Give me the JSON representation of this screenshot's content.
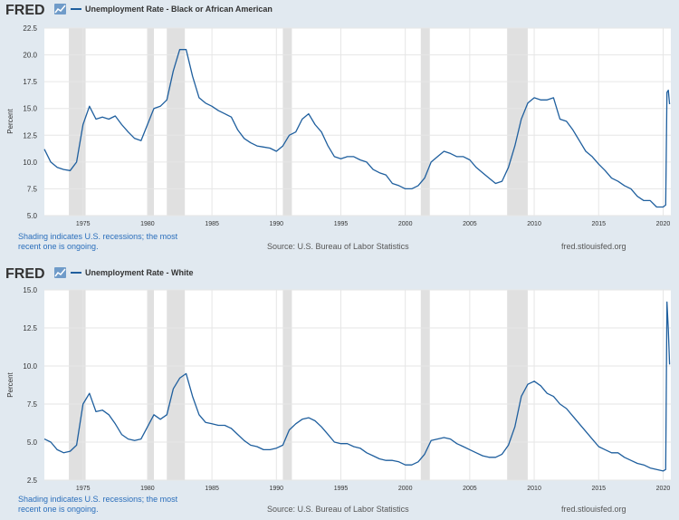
{
  "brand": {
    "logo_text": "FRED",
    "line_color": "#1f5f9e",
    "recession_color": "#e0e0e0",
    "plot_bg": "#ffffff",
    "grid_color": "#e6e6e6",
    "text_color": "#333333"
  },
  "footer": {
    "shading_note_line1": "Shading indicates U.S. recessions; the most",
    "shading_note_line2": "recent one is ongoing.",
    "source": "Source: U.S. Bureau of Labor Statistics",
    "url": "fred.stlouisfed.org"
  },
  "chart_data": [
    {
      "type": "line",
      "title": "Unemployment Rate - Black or African American",
      "ylabel": "Percent",
      "xlabel": "",
      "xlim": [
        1972.0,
        2020.6
      ],
      "ylim": [
        5.0,
        22.5
      ],
      "yticks": [
        "5.0",
        "7.5",
        "10.0",
        "12.5",
        "15.0",
        "17.5",
        "20.0",
        "22.5"
      ],
      "xticks": [
        "1975",
        "1980",
        "1985",
        "1990",
        "1995",
        "2000",
        "2005",
        "2010",
        "2015",
        "2020"
      ],
      "recessions": [
        [
          1973.9,
          1975.2
        ],
        [
          1980.0,
          1980.5
        ],
        [
          1981.5,
          1982.9
        ],
        [
          1990.5,
          1991.2
        ],
        [
          2001.2,
          2001.9
        ],
        [
          2007.9,
          2009.5
        ]
      ],
      "series": [
        {
          "name": "Unemployment Rate - Black or African American",
          "x": [
            1972.0,
            1972.5,
            1973.0,
            1973.5,
            1974.0,
            1974.5,
            1975.0,
            1975.5,
            1976.0,
            1976.5,
            1977.0,
            1977.5,
            1978.0,
            1978.5,
            1979.0,
            1979.5,
            1980.0,
            1980.5,
            1981.0,
            1981.5,
            1982.0,
            1982.5,
            1983.0,
            1983.5,
            1984.0,
            1984.5,
            1985.0,
            1985.5,
            1986.0,
            1986.5,
            1987.0,
            1987.5,
            1988.0,
            1988.5,
            1989.0,
            1989.5,
            1990.0,
            1990.5,
            1991.0,
            1991.5,
            1992.0,
            1992.5,
            1993.0,
            1993.5,
            1994.0,
            1994.5,
            1995.0,
            1995.5,
            1996.0,
            1996.5,
            1997.0,
            1997.5,
            1998.0,
            1998.5,
            1999.0,
            1999.5,
            2000.0,
            2000.5,
            2001.0,
            2001.5,
            2002.0,
            2002.5,
            2003.0,
            2003.5,
            2004.0,
            2004.5,
            2005.0,
            2005.5,
            2006.0,
            2006.5,
            2007.0,
            2007.5,
            2008.0,
            2008.5,
            2009.0,
            2009.5,
            2010.0,
            2010.5,
            2011.0,
            2011.5,
            2012.0,
            2012.5,
            2013.0,
            2013.5,
            2014.0,
            2014.5,
            2015.0,
            2015.5,
            2016.0,
            2016.5,
            2017.0,
            2017.5,
            2018.0,
            2018.5,
            2019.0,
            2019.5,
            2020.0,
            2020.2,
            2020.3,
            2020.4,
            2020.5
          ],
          "values": [
            11.2,
            10.0,
            9.5,
            9.3,
            9.2,
            10.0,
            13.5,
            15.2,
            14.0,
            14.2,
            14.0,
            14.3,
            13.5,
            12.8,
            12.2,
            12.0,
            13.5,
            15.0,
            15.2,
            15.8,
            18.5,
            20.5,
            20.5,
            18.0,
            16.0,
            15.5,
            15.2,
            14.8,
            14.5,
            14.2,
            13.0,
            12.2,
            11.8,
            11.5,
            11.4,
            11.3,
            11.0,
            11.5,
            12.5,
            12.8,
            14.0,
            14.5,
            13.5,
            12.8,
            11.5,
            10.5,
            10.3,
            10.5,
            10.5,
            10.2,
            10.0,
            9.3,
            9.0,
            8.8,
            8.0,
            7.8,
            7.5,
            7.5,
            7.8,
            8.5,
            10.0,
            10.5,
            11.0,
            10.8,
            10.5,
            10.5,
            10.2,
            9.5,
            9.0,
            8.5,
            8.0,
            8.2,
            9.5,
            11.5,
            14.0,
            15.5,
            16.0,
            15.8,
            15.8,
            16.0,
            14.0,
            13.8,
            13.0,
            12.0,
            11.0,
            10.5,
            9.8,
            9.2,
            8.5,
            8.2,
            7.8,
            7.5,
            6.8,
            6.4,
            6.4,
            5.8,
            5.8,
            6.0,
            16.5,
            16.7,
            15.4
          ]
        }
      ]
    },
    {
      "type": "line",
      "title": "Unemployment Rate - White",
      "ylabel": "Percent",
      "xlabel": "",
      "xlim": [
        1972.0,
        2020.6
      ],
      "ylim": [
        2.5,
        15.0
      ],
      "yticks": [
        "2.5",
        "5.0",
        "7.5",
        "10.0",
        "12.5",
        "15.0"
      ],
      "xticks": [
        "1975",
        "1980",
        "1985",
        "1990",
        "1995",
        "2000",
        "2005",
        "2010",
        "2015",
        "2020"
      ],
      "recessions": [
        [
          1973.9,
          1975.2
        ],
        [
          1980.0,
          1980.5
        ],
        [
          1981.5,
          1982.9
        ],
        [
          1990.5,
          1991.2
        ],
        [
          2001.2,
          2001.9
        ],
        [
          2007.9,
          2009.5
        ]
      ],
      "series": [
        {
          "name": "Unemployment Rate - White",
          "x": [
            1972.0,
            1972.5,
            1973.0,
            1973.5,
            1974.0,
            1974.5,
            1975.0,
            1975.5,
            1976.0,
            1976.5,
            1977.0,
            1977.5,
            1978.0,
            1978.5,
            1979.0,
            1979.5,
            1980.0,
            1980.5,
            1981.0,
            1981.5,
            1982.0,
            1982.5,
            1983.0,
            1983.5,
            1984.0,
            1984.5,
            1985.0,
            1985.5,
            1986.0,
            1986.5,
            1987.0,
            1987.5,
            1988.0,
            1988.5,
            1989.0,
            1989.5,
            1990.0,
            1990.5,
            1991.0,
            1991.5,
            1992.0,
            1992.5,
            1993.0,
            1993.5,
            1994.0,
            1994.5,
            1995.0,
            1995.5,
            1996.0,
            1996.5,
            1997.0,
            1997.5,
            1998.0,
            1998.5,
            1999.0,
            1999.5,
            2000.0,
            2000.5,
            2001.0,
            2001.5,
            2002.0,
            2002.5,
            2003.0,
            2003.5,
            2004.0,
            2004.5,
            2005.0,
            2005.5,
            2006.0,
            2006.5,
            2007.0,
            2007.5,
            2008.0,
            2008.5,
            2009.0,
            2009.5,
            2010.0,
            2010.5,
            2011.0,
            2011.5,
            2012.0,
            2012.5,
            2013.0,
            2013.5,
            2014.0,
            2014.5,
            2015.0,
            2015.5,
            2016.0,
            2016.5,
            2017.0,
            2017.5,
            2018.0,
            2018.5,
            2019.0,
            2019.5,
            2020.0,
            2020.2,
            2020.3,
            2020.4,
            2020.5
          ],
          "values": [
            5.2,
            5.0,
            4.5,
            4.3,
            4.4,
            4.8,
            7.5,
            8.2,
            7.0,
            7.1,
            6.8,
            6.2,
            5.5,
            5.2,
            5.1,
            5.2,
            6.0,
            6.8,
            6.5,
            6.8,
            8.5,
            9.2,
            9.5,
            8.0,
            6.8,
            6.3,
            6.2,
            6.1,
            6.1,
            5.9,
            5.5,
            5.1,
            4.8,
            4.7,
            4.5,
            4.5,
            4.6,
            4.8,
            5.8,
            6.2,
            6.5,
            6.6,
            6.4,
            6.0,
            5.5,
            5.0,
            4.9,
            4.9,
            4.7,
            4.6,
            4.3,
            4.1,
            3.9,
            3.8,
            3.8,
            3.7,
            3.5,
            3.5,
            3.7,
            4.2,
            5.1,
            5.2,
            5.3,
            5.2,
            4.9,
            4.7,
            4.5,
            4.3,
            4.1,
            4.0,
            4.0,
            4.2,
            4.8,
            6.0,
            8.0,
            8.8,
            9.0,
            8.7,
            8.2,
            8.0,
            7.5,
            7.2,
            6.7,
            6.2,
            5.7,
            5.2,
            4.7,
            4.5,
            4.3,
            4.3,
            4.0,
            3.8,
            3.6,
            3.5,
            3.3,
            3.2,
            3.1,
            3.2,
            14.2,
            12.4,
            10.1
          ]
        }
      ]
    }
  ]
}
